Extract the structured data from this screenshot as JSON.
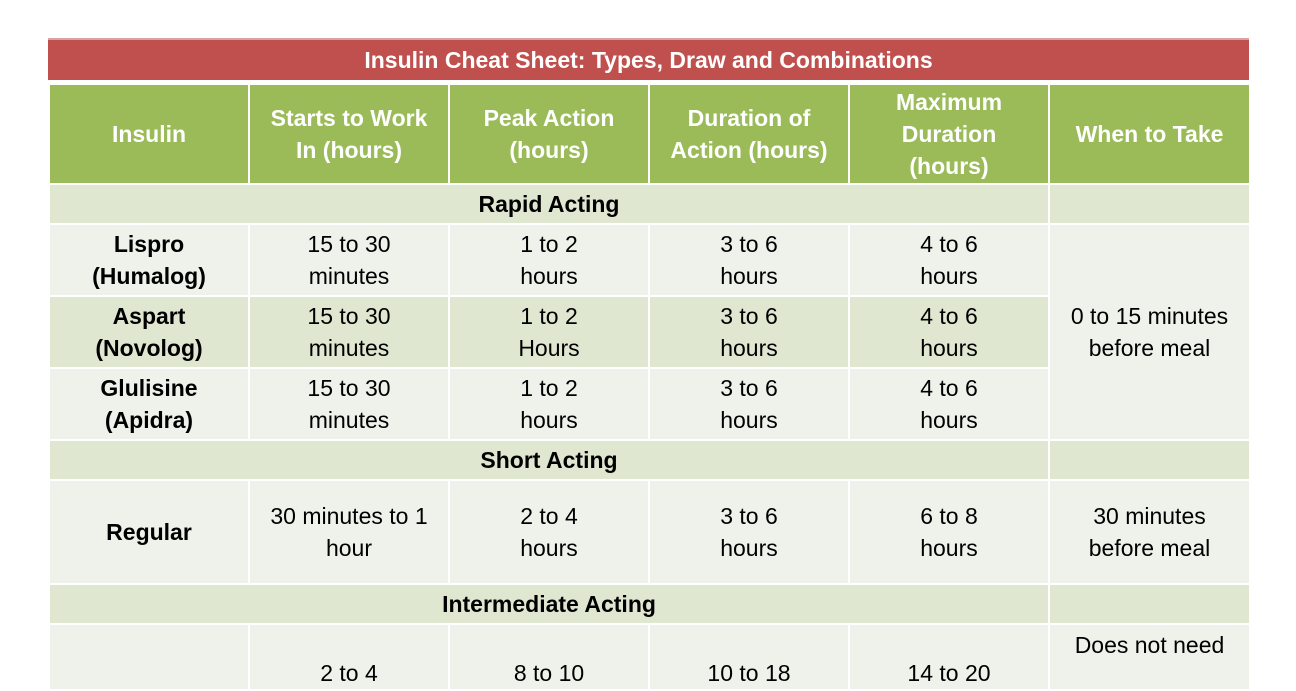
{
  "title": "Insulin Cheat Sheet: Types, Draw and Combinations",
  "headers": {
    "insulin": "Insulin",
    "starts": "Starts to Work In (hours)",
    "peak": "Peak Action (hours)",
    "duration": "Duration of Action (hours)",
    "max_duration": "Maximum Duration (hours)",
    "when": "When to Take"
  },
  "sections": {
    "rapid": "Rapid Acting",
    "short": "Short Acting",
    "intermediate": "Intermediate Acting"
  },
  "rapid_rows": [
    {
      "name": "Lispro (Humalog)",
      "starts": "15 to 30 minutes",
      "peak": "1 to 2 hours",
      "duration": "3 to 6 hours",
      "max": "4 to 6 hours"
    },
    {
      "name": "Aspart (Novolog)",
      "starts": "15 to 30 minutes",
      "peak": "1 to 2 Hours",
      "duration": "3 to 6 hours",
      "max": "4 to 6 hours"
    },
    {
      "name": "Glulisine (Apidra)",
      "starts": "15 to 30 minutes",
      "peak": "1 to 2 hours",
      "duration": "3 to 6 hours",
      "max": "4 to 6 hours"
    }
  ],
  "rapid_when": "0 to 15 minutes before meal",
  "short_row": {
    "name": "Regular",
    "starts": "30 minutes to 1 hour",
    "peak": "2 to 4 hours",
    "duration": "3 to 6 hours",
    "max": "6 to 8 hours",
    "when": "30 minutes before meal"
  },
  "intermediate_row": {
    "name": "",
    "starts": "2 to 4",
    "peak": "8 to 10",
    "duration": "10 to 18",
    "max": "14 to 20",
    "when": "Does not need"
  }
}
